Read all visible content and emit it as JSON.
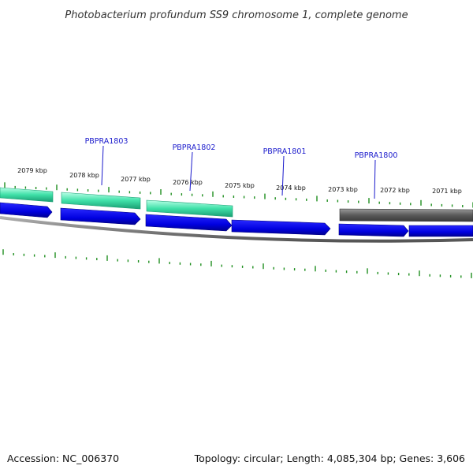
{
  "title": "Photobacterium profundum SS9 chromosome 1, complete genome",
  "footer": {
    "accession": "Accession: NC_006370",
    "summary": "Topology: circular; Length: 4,085,304 bp; Genes: 3,606"
  },
  "tick_labels": [
    "2079 kbp",
    "2078 kbp",
    "2077 kbp",
    "2076 kbp",
    "2075 kbp",
    "2074 kbp",
    "2073 kbp",
    "2072 kbp",
    "2071 kbp"
  ],
  "gene_labels": [
    "PBPRA1803",
    "PBPRA1802",
    "PBPRA1801",
    "PBPRA1800"
  ],
  "colors": {
    "background": "#ffffff",
    "forward_gene": "#3fe0a8",
    "forward_gene_dark": "#1a9e73",
    "reverse_gene": "#0000e0",
    "reverse_gene_dark": "#000080",
    "grey_feature": "#666666",
    "backbone": "#888888",
    "tick": "#1f8f1f",
    "gene_label": "#1a1acc"
  }
}
